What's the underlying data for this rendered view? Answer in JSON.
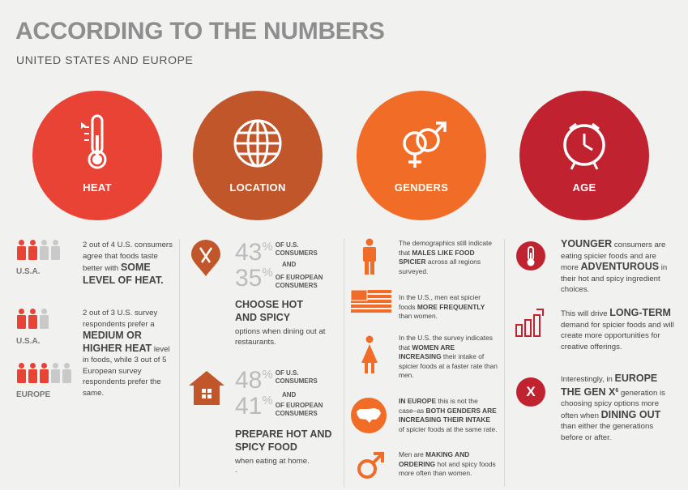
{
  "header": {
    "title": "ACCORDING TO THE NUMBERS",
    "subtitle": "UNITED STATES AND EUROPE"
  },
  "categories": {
    "heat": {
      "label": "HEAT",
      "color": "#e94335"
    },
    "location": {
      "label": "LOCATION",
      "color": "#c2562b"
    },
    "genders": {
      "label": "GENDERS",
      "color": "#f06c27"
    },
    "age": {
      "label": "AGE",
      "color": "#c0232f"
    }
  },
  "heat": {
    "stat1": {
      "region": "U.S.A.",
      "filled": 2,
      "total": 4,
      "text": "2 out of 4 U.S. consumers agree that foods taste better with",
      "bold": "SOME LEVEL OF HEAT."
    },
    "stat2": {
      "region": "U.S.A.",
      "filled": 2,
      "total": 3,
      "text_a": "2 out of 3 U.S. survey respondents prefer a",
      "bold": "MEDIUM OR HIGHER HEAT",
      "text_b": "level in foods, while 3 out of 5 European survey respondents prefer the same."
    },
    "stat3": {
      "region": "EUROPE",
      "filled": 3,
      "total": 5
    }
  },
  "location": {
    "restaurant": {
      "us_pct": "43",
      "us_label": "OF U.S. CONSUMERS",
      "and": "AND",
      "eu_pct": "35",
      "eu_label": "OF EUROPEAN CONSUMERS",
      "heading": "CHOOSE HOT AND SPICY",
      "sub": "options when dining out at restaurants."
    },
    "home": {
      "us_pct": "48",
      "us_label": "OF U.S. CONSUMERS",
      "and": "AND",
      "eu_pct": "41",
      "eu_label": "OF EUROPEAN CONSUMERS",
      "heading": "PREPARE HOT AND SPICY FOOD",
      "sub": "when eating at home.",
      "dot": "."
    },
    "pct_symbol": "%"
  },
  "genders": {
    "g1": {
      "a": "The demographics still indicate that",
      "b": "MALES LIKE FOOD SPICIER",
      "c": "across all regions surveyed."
    },
    "g2": {
      "a": "In the U.S., men eat spicier foods",
      "b": "MORE FREQUENTLY",
      "c": "than women."
    },
    "g3": {
      "a": "In the U.S. the survey indicates that",
      "b": "WOMEN ARE INCREASING",
      "c": "their intake of spicier foods at a faster rate than men."
    },
    "g4": {
      "a": "IN EUROPE",
      "b": "this is not the case–as",
      "c": "BOTH GENDERS ARE INCREASING THEIR INTAKE",
      "d": "of spicier foods at the same rate."
    },
    "g5": {
      "a": "Men are",
      "b": "MAKING AND ORDERING",
      "c": "hot and spicy foods more often than women."
    }
  },
  "age": {
    "a1": {
      "big": "YOUNGER",
      "a": "consumers are eating spicier foods and are more",
      "big2": "ADVENTUROUS",
      "b": "in their hot and spicy ingredient choices."
    },
    "a2": {
      "a": "This will drive",
      "big": "LONG-TERM",
      "b": "demand for spicier foods and will create more opportunities for creative offerings."
    },
    "a3": {
      "a": "Interestingly, in",
      "big": "EUROPE THE GEN X",
      "sup": "6",
      "b": "generation is choosing spicy options more often when",
      "big2": "DINING OUT",
      "c": "than either the generations before or after.",
      "icon_letter": "X"
    }
  }
}
